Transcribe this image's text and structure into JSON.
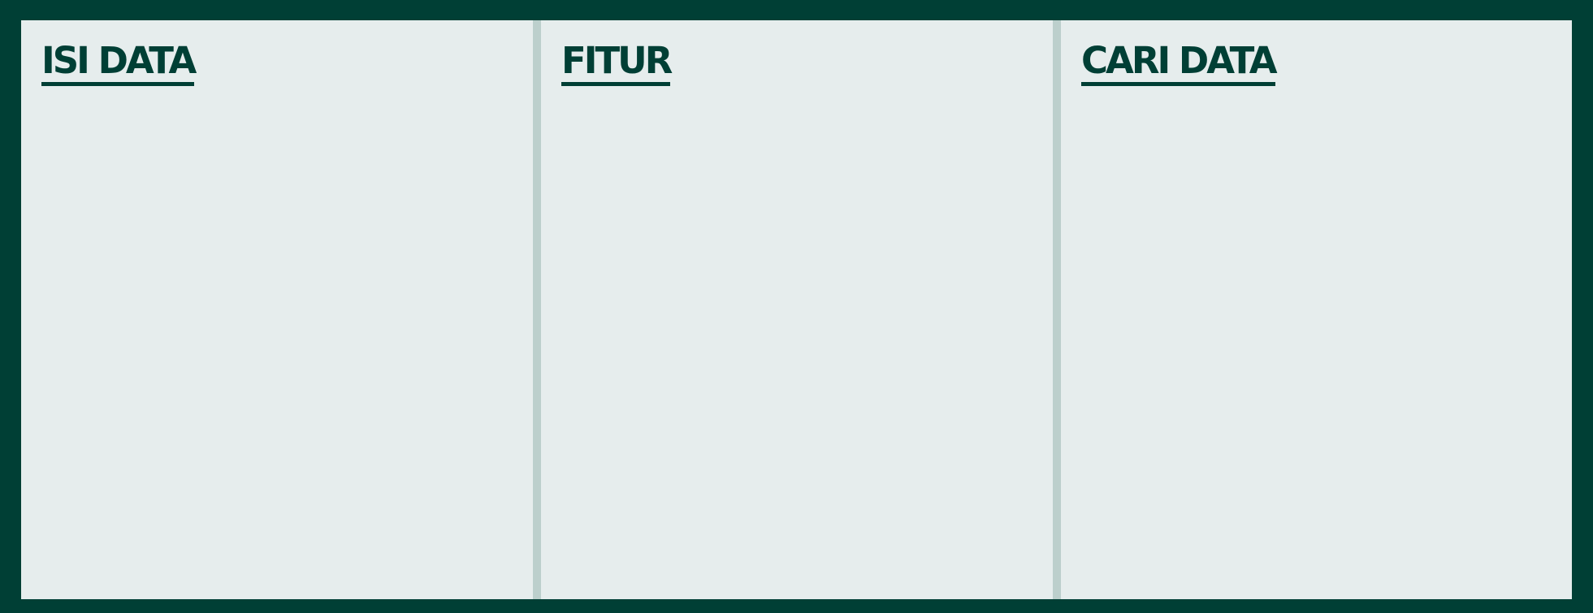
{
  "panels": [
    {
      "title": "ISI DATA"
    },
    {
      "title": "FITUR"
    },
    {
      "title": "CARI DATA"
    }
  ],
  "colors": {
    "background": "#003f35",
    "panel": "#e6eded",
    "divider": "#bccfcc",
    "title": "#003f35"
  }
}
